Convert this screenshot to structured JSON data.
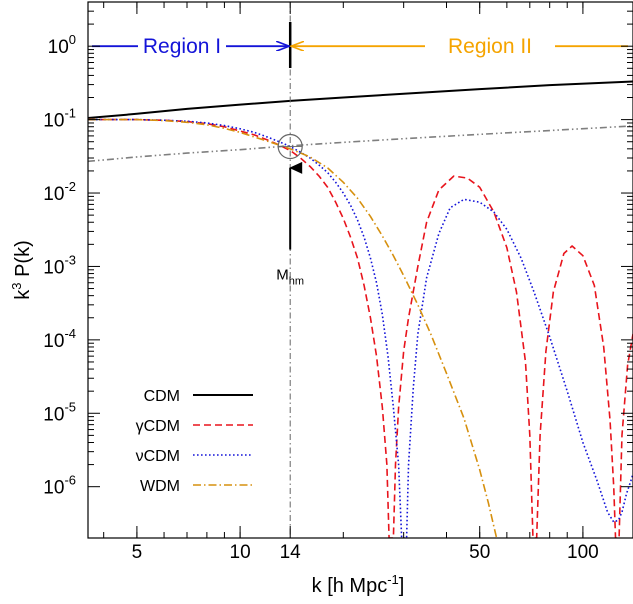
{
  "chart_data": {
    "type": "line",
    "xlabel": "k [h Mpc",
    "xlabel_sup": "-1",
    "xlabel_close": "]",
    "ylabel_pre": "k",
    "ylabel_sup": "3",
    "ylabel_post": " P(k)",
    "x_scale": "log",
    "y_scale": "log",
    "xlim": [
      3.6,
      140
    ],
    "ylim": [
      2e-07,
      4
    ],
    "x_ticks": [
      {
        "value": 5,
        "label": "5"
      },
      {
        "value": 10,
        "label": "10"
      },
      {
        "value": 14,
        "label": "14"
      },
      {
        "value": 50,
        "label": "50"
      },
      {
        "value": 100,
        "label": "100"
      }
    ],
    "y_ticks": [
      {
        "value": 1,
        "base": "10",
        "exp": "0"
      },
      {
        "value": 0.1,
        "base": "10",
        "exp": "-1"
      },
      {
        "value": 0.01,
        "base": "10",
        "exp": "-2"
      },
      {
        "value": 0.001,
        "base": "10",
        "exp": "-3"
      },
      {
        "value": 0.0001,
        "base": "10",
        "exp": "-4"
      },
      {
        "value": 1e-05,
        "base": "10",
        "exp": "-5"
      },
      {
        "value": 1e-06,
        "base": "10",
        "exp": "-6"
      }
    ],
    "grid": false,
    "legend_position": "bottom-left",
    "series": [
      {
        "name": "CDM",
        "color": "#000000",
        "dash": "solid",
        "points": [
          [
            3.6,
            0.105
          ],
          [
            5,
            0.12
          ],
          [
            7,
            0.14
          ],
          [
            10,
            0.16
          ],
          [
            14,
            0.18
          ],
          [
            20,
            0.2
          ],
          [
            30,
            0.225
          ],
          [
            50,
            0.26
          ],
          [
            80,
            0.295
          ],
          [
            140,
            0.33
          ]
        ]
      },
      {
        "name": "γCDM",
        "color": "#e8141c",
        "dash": "dashed",
        "points": [
          [
            3.6,
            0.1
          ],
          [
            5,
            0.1
          ],
          [
            6,
            0.098
          ],
          [
            7,
            0.094
          ],
          [
            8,
            0.088
          ],
          [
            9,
            0.08
          ],
          [
            10,
            0.07
          ],
          [
            11,
            0.062
          ],
          [
            12,
            0.053
          ],
          [
            13,
            0.045
          ],
          [
            14,
            0.038
          ],
          [
            15,
            0.03
          ],
          [
            16,
            0.023
          ],
          [
            17,
            0.017
          ],
          [
            18,
            0.012
          ],
          [
            19,
            0.0075
          ],
          [
            20,
            0.0045
          ],
          [
            21,
            0.0025
          ],
          [
            22,
            0.0013
          ],
          [
            23,
            0.00055
          ],
          [
            24,
            0.0002
          ],
          [
            25,
            6e-05
          ],
          [
            26,
            1.2e-05
          ],
          [
            26.8,
            2e-06
          ],
          [
            27.2,
            2e-07
          ],
          [
            28.0,
            2e-07
          ],
          [
            28.4,
            2e-06
          ],
          [
            29,
            1.2e-05
          ],
          [
            30,
            7e-05
          ],
          [
            31,
            0.0002
          ],
          [
            33,
            0.001
          ],
          [
            35,
            0.004
          ],
          [
            38,
            0.011
          ],
          [
            42,
            0.017
          ],
          [
            46,
            0.016
          ],
          [
            50,
            0.012
          ],
          [
            55,
            0.0055
          ],
          [
            60,
            0.0018
          ],
          [
            64,
            0.00045
          ],
          [
            68,
            5e-05
          ],
          [
            70,
            5e-06
          ],
          [
            71.5,
            2e-07
          ],
          [
            73.3,
            2e-07
          ],
          [
            75,
            5e-06
          ],
          [
            78,
            7e-05
          ],
          [
            82,
            0.00045
          ],
          [
            88,
            0.0015
          ],
          [
            93,
            0.0019
          ],
          [
            100,
            0.0014
          ],
          [
            108,
            0.00055
          ],
          [
            115,
            8e-05
          ],
          [
            120,
            8e-06
          ],
          [
            123,
            1e-06
          ],
          [
            124.5,
            2e-07
          ],
          [
            127.5,
            2e-07
          ],
          [
            130,
            5e-06
          ],
          [
            135,
            4.5e-05
          ],
          [
            140,
            0.00012
          ]
        ]
      },
      {
        "name": "νCDM",
        "color": "#1414d8",
        "dash": "dotted",
        "points": [
          [
            3.6,
            0.1
          ],
          [
            5,
            0.1
          ],
          [
            6,
            0.098
          ],
          [
            7,
            0.095
          ],
          [
            8,
            0.09
          ],
          [
            9,
            0.083
          ],
          [
            10,
            0.075
          ],
          [
            11,
            0.067
          ],
          [
            12,
            0.058
          ],
          [
            13,
            0.05
          ],
          [
            14,
            0.043
          ],
          [
            15,
            0.036
          ],
          [
            16,
            0.03
          ],
          [
            17,
            0.024
          ],
          [
            18,
            0.019
          ],
          [
            19,
            0.014
          ],
          [
            20,
            0.01
          ],
          [
            21,
            0.0068
          ],
          [
            22,
            0.0043
          ],
          [
            23,
            0.0025
          ],
          [
            24,
            0.0013
          ],
          [
            25,
            0.0006
          ],
          [
            26,
            0.00022
          ],
          [
            27,
            6e-05
          ],
          [
            28,
            1.2e-05
          ],
          [
            29,
            2e-06
          ],
          [
            29.6,
            2e-07
          ],
          [
            30.6,
            2e-07
          ],
          [
            31,
            2e-06
          ],
          [
            32,
            2.2e-05
          ],
          [
            33,
            0.00012
          ],
          [
            35,
            0.0007
          ],
          [
            38,
            0.0028
          ],
          [
            41,
            0.0063
          ],
          [
            45,
            0.0082
          ],
          [
            50,
            0.0075
          ],
          [
            55,
            0.0055
          ],
          [
            60,
            0.0032
          ],
          [
            66,
            0.0013
          ],
          [
            72,
            0.00045
          ],
          [
            80,
            0.00011
          ],
          [
            90,
            2e-05
          ],
          [
            100,
            4e-06
          ],
          [
            110,
            1.2e-06
          ],
          [
            118,
            4.5e-07
          ],
          [
            123,
            3.3e-07
          ],
          [
            127,
            3.5e-07
          ],
          [
            130,
            4.5e-07
          ],
          [
            134,
            8e-07
          ],
          [
            138,
            1.2e-06
          ],
          [
            140,
            1.5e-06
          ]
        ]
      },
      {
        "name": "WDM",
        "color": "#d6900e",
        "dash": "dashdot",
        "points": [
          [
            3.6,
            0.1
          ],
          [
            5,
            0.1
          ],
          [
            6,
            0.097
          ],
          [
            7,
            0.092
          ],
          [
            8,
            0.085
          ],
          [
            9,
            0.076
          ],
          [
            10,
            0.067
          ],
          [
            11,
            0.058
          ],
          [
            12,
            0.051
          ],
          [
            13,
            0.045
          ],
          [
            14,
            0.04
          ],
          [
            16,
            0.031
          ],
          [
            18,
            0.022
          ],
          [
            20,
            0.014
          ],
          [
            22,
            0.0085
          ],
          [
            24,
            0.0048
          ],
          [
            26,
            0.0026
          ],
          [
            28,
            0.0014
          ],
          [
            30,
            0.00075
          ],
          [
            33,
            0.0003
          ],
          [
            36,
            0.00012
          ],
          [
            40,
            3.5e-05
          ],
          [
            45,
            8.5e-06
          ],
          [
            50,
            1.7e-06
          ],
          [
            53,
            6e-07
          ],
          [
            56,
            2e-07
          ]
        ]
      },
      {
        "name": "",
        "color": "#7f7f7f",
        "dash": "dashdotdot",
        "points": [
          [
            3.6,
            0.027
          ],
          [
            5,
            0.031
          ],
          [
            7,
            0.035
          ],
          [
            10,
            0.039
          ],
          [
            14,
            0.044
          ],
          [
            20,
            0.049
          ],
          [
            30,
            0.055
          ],
          [
            50,
            0.063
          ],
          [
            80,
            0.071
          ],
          [
            140,
            0.082
          ]
        ]
      }
    ],
    "legend": [
      "CDM",
      "γCDM",
      "νCDM",
      "WDM"
    ],
    "annotations": {
      "region1_label": "Region I",
      "region1_color": "#1414d8",
      "region2_label": "Region II",
      "region2_color": "#f5a400",
      "divider_k": 14,
      "boundary_y": 1,
      "circle_center": [
        14,
        0.043
      ],
      "arrow_label_base": "M",
      "arrow_label_sub": "hm",
      "arrow_tip_y": 0.022,
      "arrow_tail_y": 0.0017
    }
  }
}
